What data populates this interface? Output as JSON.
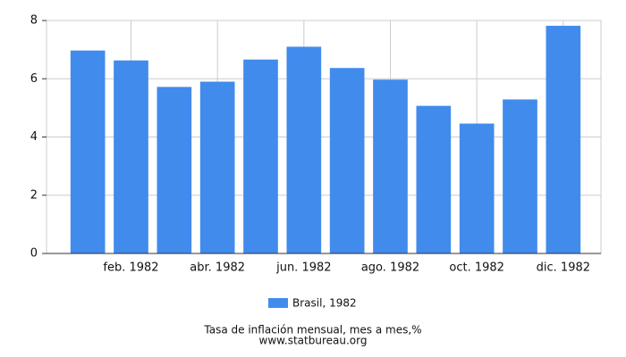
{
  "chart_data": {
    "type": "bar",
    "categories": [
      null,
      "feb. 1982",
      null,
      "abr. 1982",
      null,
      "jun. 1982",
      null,
      "ago. 1982",
      null,
      "oct. 1982",
      null,
      "dic. 1982"
    ],
    "series": [
      {
        "name": "Brasil, 1982",
        "color": "#418bed",
        "values": [
          6.97,
          6.63,
          5.72,
          5.9,
          6.66,
          7.1,
          6.37,
          5.97,
          5.07,
          4.46,
          5.29,
          7.82
        ]
      }
    ],
    "ylim": [
      0,
      8
    ],
    "yticks": [
      0,
      2,
      4,
      6,
      8
    ],
    "grid": true,
    "footer": [
      "Tasa de inflación mensual, mes a mes,%",
      "www.statbureau.org"
    ]
  }
}
